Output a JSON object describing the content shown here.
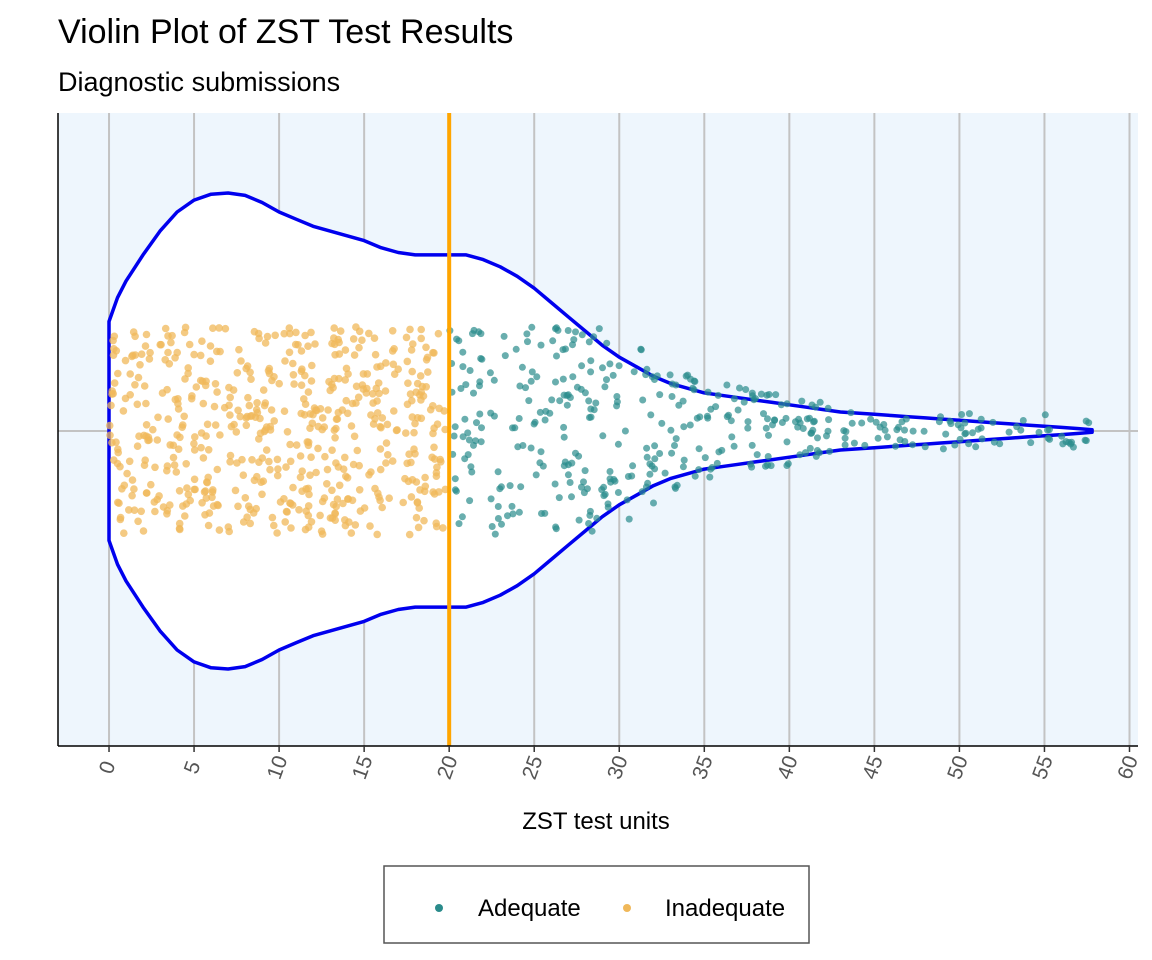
{
  "chart_data": {
    "type": "violin",
    "title": "Violin Plot of ZST Test Results",
    "subtitle": "Diagnostic submissions",
    "xlabel": "ZST test units",
    "xlim": [
      -3,
      60.5
    ],
    "x_ticks": [
      0,
      5,
      10,
      15,
      20,
      25,
      30,
      35,
      40,
      45,
      50,
      55,
      60
    ],
    "threshold": 20,
    "grid": true,
    "legend_position": "bottom",
    "colors": {
      "panel_background": "#eef6fd",
      "grid": "#c3c3c3",
      "violin_outline": "#0000ee",
      "violin_fill": "#ffffff",
      "threshold_line": "#ffa500",
      "adequate": "#2a8b8b",
      "inadequate": "#f0b85a"
    },
    "violin_density": {
      "x": [
        0,
        0.5,
        1,
        2,
        3,
        4,
        5,
        6,
        7,
        8,
        9,
        10,
        11,
        12,
        13,
        14,
        15,
        16,
        17,
        18,
        19,
        20,
        21,
        22,
        23,
        24,
        25,
        26,
        27,
        28,
        29,
        30,
        31,
        32,
        33,
        34,
        35,
        36,
        37,
        38,
        39,
        40,
        41,
        42,
        43,
        44,
        45,
        46,
        47,
        48,
        49,
        50,
        51,
        52,
        53,
        54,
        55,
        56,
        57,
        57.8
      ],
      "half_width": [
        0.46,
        0.56,
        0.63,
        0.74,
        0.84,
        0.92,
        0.97,
        0.995,
        1.0,
        0.99,
        0.96,
        0.92,
        0.89,
        0.86,
        0.84,
        0.82,
        0.8,
        0.77,
        0.75,
        0.74,
        0.74,
        0.74,
        0.74,
        0.72,
        0.69,
        0.65,
        0.6,
        0.54,
        0.48,
        0.42,
        0.36,
        0.31,
        0.27,
        0.23,
        0.2,
        0.18,
        0.16,
        0.15,
        0.14,
        0.13,
        0.12,
        0.11,
        0.1,
        0.09,
        0.08,
        0.075,
        0.07,
        0.065,
        0.06,
        0.055,
        0.05,
        0.045,
        0.04,
        0.035,
        0.03,
        0.025,
        0.02,
        0.015,
        0.01,
        0.005
      ]
    },
    "series": [
      {
        "name": "Adequate",
        "x_range": [
          20,
          57.8
        ],
        "count": 400
      },
      {
        "name": "Inadequate",
        "x_range": [
          0,
          20
        ],
        "count": 560
      }
    ],
    "legend": [
      "Adequate",
      "Inadequate"
    ]
  }
}
